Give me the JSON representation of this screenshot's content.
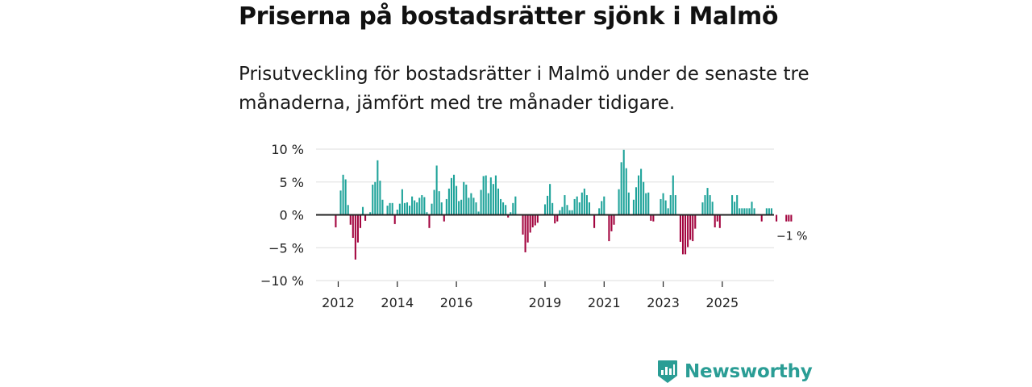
{
  "title": "Priserna på bostadsrätter sjönk i Malmö",
  "subtitle": "Prisutveckling för bostadsrätter i Malmö under de senaste tre månaderna, jämfört med tre månader tidigare.",
  "brand": {
    "name": "Newsworthy",
    "color": "#2a9d95"
  },
  "colors": {
    "positive": "#1fa39a",
    "negative": "#a3053f",
    "axis": "#222222",
    "grid": "#dddddd"
  },
  "chart_data": {
    "type": "bar",
    "title": "",
    "xlabel": "",
    "ylabel": "",
    "ylim": [
      -10,
      10
    ],
    "xlim": [
      2011.25,
      2026.75
    ],
    "y_ticks": [
      {
        "value": 10,
        "label": "10 %"
      },
      {
        "value": 5,
        "label": "5 %"
      },
      {
        "value": 0,
        "label": "0 %"
      },
      {
        "value": -5,
        "label": "−5 %"
      },
      {
        "value": -10,
        "label": "−10 %"
      }
    ],
    "x_ticks": [
      {
        "value": 2012,
        "label": "2012"
      },
      {
        "value": 2014,
        "label": "2014"
      },
      {
        "value": 2016,
        "label": "2016"
      },
      {
        "value": 2019,
        "label": "2019"
      },
      {
        "value": 2021,
        "label": "2021"
      },
      {
        "value": 2023,
        "label": "2023"
      },
      {
        "value": 2025,
        "label": "2025"
      }
    ],
    "start": {
      "year": 2011,
      "month": 12
    },
    "values": [
      -1.9,
      0,
      3.7,
      6.1,
      5.4,
      1.5,
      -1.5,
      -3.5,
      -6.8,
      -4.2,
      -2.0,
      1.2,
      -0.9,
      0,
      0.4,
      4.6,
      5.0,
      8.3,
      5.2,
      2.3,
      0,
      1.4,
      1.8,
      1.8,
      -1.4,
      0.8,
      1.7,
      3.9,
      1.8,
      1.9,
      1.4,
      2.8,
      2.2,
      1.9,
      2.6,
      3.0,
      2.7,
      0.4,
      -2.0,
      1.7,
      3.8,
      7.5,
      3.6,
      1.9,
      -1.0,
      2.4,
      4.0,
      5.6,
      6.1,
      4.4,
      2.1,
      2.3,
      5.0,
      4.6,
      2.6,
      3.3,
      2.6,
      1.9,
      0.5,
      3.8,
      5.9,
      6.0,
      3.3,
      5.7,
      4.7,
      6.0,
      4.0,
      2.4,
      1.9,
      1.5,
      -0.4,
      0.4,
      1.8,
      2.8,
      0,
      0,
      -3.0,
      -5.7,
      -4.2,
      -2.7,
      -1.9,
      -1.6,
      -1.2,
      0,
      0,
      1.6,
      2.9,
      4.7,
      1.8,
      -1.3,
      -1.0,
      0.7,
      1.2,
      3.0,
      1.5,
      0.7,
      0.7,
      2.4,
      2.8,
      1.9,
      3.4,
      4.0,
      3.0,
      1.9,
      0,
      -2.0,
      0,
      1.0,
      2.1,
      2.8,
      0,
      -4.0,
      -2.5,
      -1.5,
      0,
      3.9,
      8.0,
      9.9,
      7.1,
      3.4,
      0,
      2.3,
      4.2,
      6.0,
      7.0,
      5.0,
      3.3,
      3.4,
      -0.9,
      -1.0,
      0,
      0,
      2.4,
      3.3,
      2.2,
      1.0,
      3.0,
      6.0,
      3.0,
      0,
      -4.1,
      -6.0,
      -6.0,
      -4.9,
      -3.8,
      -4.0,
      -2.1,
      0,
      0,
      1.9,
      3.0,
      4.1,
      3.0,
      2.0,
      -1.9,
      -1.0,
      -2.0,
      0,
      0,
      0,
      0,
      3.0,
      2.0,
      3.0,
      1.0,
      1.0,
      1.0,
      1.0,
      1.0,
      2.0,
      1.0,
      0,
      0,
      -1.0,
      0,
      1.0,
      1.0,
      1.0,
      0,
      -1.0,
      0,
      0,
      0,
      -1.0,
      -1.0,
      -1.0
    ],
    "annotations": [
      {
        "text": "−1 %",
        "near": "last bar",
        "position": "below-right"
      }
    ]
  }
}
